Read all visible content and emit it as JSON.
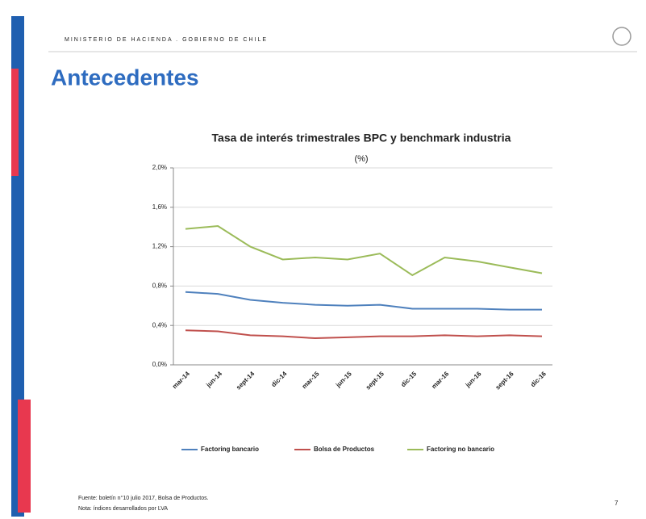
{
  "header": {
    "org": "MINISTERIO DE HACIENDA . GOBIERNO DE CHILE",
    "title": "Antecedentes"
  },
  "chart_data": {
    "type": "line",
    "title": "Tasa de interés trimestrales BPC y benchmark industria",
    "subtitle": "(%)",
    "categories": [
      "mar-14",
      "jun-14",
      "sept-14",
      "dic-14",
      "mar-15",
      "jun-15",
      "sept-15",
      "dic-15",
      "mar-16",
      "jun-16",
      "sept-16",
      "dic-16"
    ],
    "series": [
      {
        "name": "Factoring bancario",
        "color": "#4f81bd",
        "values": [
          0.74,
          0.72,
          0.66,
          0.63,
          0.61,
          0.6,
          0.61,
          0.57,
          0.57,
          0.57,
          0.56,
          0.56
        ]
      },
      {
        "name": "Bolsa de Productos",
        "color": "#c0504d",
        "values": [
          0.35,
          0.34,
          0.3,
          0.29,
          0.27,
          0.28,
          0.29,
          0.29,
          0.3,
          0.29,
          0.3,
          0.29
        ]
      },
      {
        "name": "Factoring no bancario",
        "color": "#9bbb59",
        "values": [
          1.38,
          1.41,
          1.2,
          1.07,
          1.09,
          1.07,
          1.13,
          0.91,
          1.09,
          1.05,
          0.99,
          0.93
        ]
      }
    ],
    "ylim": [
      0,
      2.0
    ],
    "yticks": [
      {
        "value": 0,
        "label": "0,0%"
      },
      {
        "value": 0.4,
        "label": "0,4%"
      },
      {
        "value": 0.8,
        "label": "0,8%"
      },
      {
        "value": 1.2,
        "label": "1,2%"
      },
      {
        "value": 1.6,
        "label": "1,6%"
      },
      {
        "value": 2.0,
        "label": "2,0%"
      }
    ],
    "grid": true,
    "legend": "bottom"
  },
  "footer": {
    "source": "Fuente: boletín n°10 julio 2017, Bolsa de Productos.",
    "note": "Nota: índices desarrollados por LVA",
    "page": "7"
  }
}
